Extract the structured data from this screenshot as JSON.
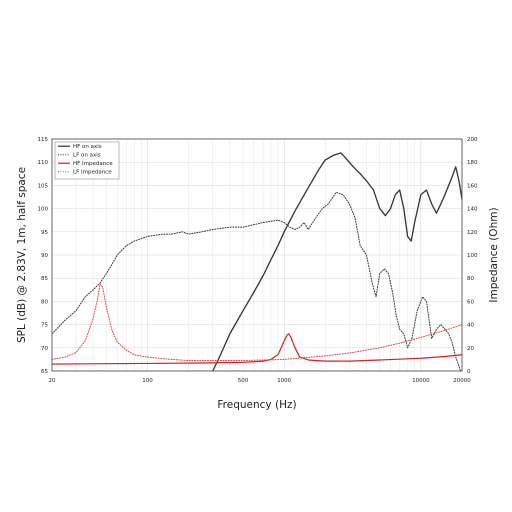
{
  "chart_data": {
    "type": "line",
    "title": "",
    "xlabel": "Frequency (Hz)",
    "ylabel": "SPL (dB) @ 2.83V, 1m, half space",
    "ylabel_right": "Impedance (Ohm)",
    "x_scale": "log",
    "xlim": [
      20,
      20000
    ],
    "ylim": [
      65,
      115
    ],
    "ylim_right": [
      0,
      200
    ],
    "x_ticks": [
      {
        "value": 20,
        "label": "20"
      },
      {
        "value": 100,
        "label": "100"
      },
      {
        "value": 500,
        "label": "500"
      },
      {
        "value": 1000,
        "label": "1000"
      },
      {
        "value": 10000,
        "label": "10000"
      },
      {
        "value": 20000,
        "label": "20000"
      }
    ],
    "y_ticks": [
      65,
      70,
      75,
      80,
      85,
      90,
      95,
      100,
      105,
      110,
      115
    ],
    "y_ticks_right": [
      0,
      20,
      40,
      60,
      80,
      100,
      120,
      140,
      160,
      180,
      200
    ],
    "grid": true,
    "legend_position": "top-left",
    "series": [
      {
        "name": "HF on axis",
        "axis": "left",
        "color": "#333333",
        "style": "solid",
        "points": [
          [
            300,
            65
          ],
          [
            330,
            67.5
          ],
          [
            400,
            73
          ],
          [
            500,
            78
          ],
          [
            600,
            82
          ],
          [
            700,
            85.5
          ],
          [
            800,
            89
          ],
          [
            900,
            92
          ],
          [
            1000,
            95
          ],
          [
            1200,
            99.5
          ],
          [
            1500,
            104.5
          ],
          [
            1800,
            108.5
          ],
          [
            2000,
            110.5
          ],
          [
            2300,
            111.5
          ],
          [
            2600,
            112
          ],
          [
            2800,
            111
          ],
          [
            3200,
            109
          ],
          [
            3600,
            107.5
          ],
          [
            4000,
            106
          ],
          [
            4500,
            104
          ],
          [
            5000,
            100
          ],
          [
            5500,
            98.5
          ],
          [
            6000,
            100
          ],
          [
            6500,
            103
          ],
          [
            7000,
            104
          ],
          [
            7500,
            100
          ],
          [
            8000,
            94
          ],
          [
            8500,
            93
          ],
          [
            9000,
            97
          ],
          [
            10000,
            103
          ],
          [
            11000,
            104
          ],
          [
            12000,
            101
          ],
          [
            13000,
            99
          ],
          [
            14000,
            101
          ],
          [
            15000,
            103
          ],
          [
            16500,
            106
          ],
          [
            18000,
            109
          ],
          [
            19000,
            106
          ],
          [
            20000,
            102
          ]
        ]
      },
      {
        "name": "LF on axis",
        "axis": "left",
        "color": "#333333",
        "style": "dotted",
        "points": [
          [
            20,
            73
          ],
          [
            25,
            76
          ],
          [
            30,
            78
          ],
          [
            35,
            81
          ],
          [
            40,
            82.5
          ],
          [
            45,
            84
          ],
          [
            50,
            86
          ],
          [
            55,
            88
          ],
          [
            60,
            90
          ],
          [
            70,
            92
          ],
          [
            80,
            93
          ],
          [
            100,
            94
          ],
          [
            130,
            94.5
          ],
          [
            150,
            94.5
          ],
          [
            180,
            95
          ],
          [
            200,
            94.5
          ],
          [
            250,
            95
          ],
          [
            300,
            95.5
          ],
          [
            400,
            96
          ],
          [
            500,
            96
          ],
          [
            700,
            97
          ],
          [
            900,
            97.5
          ],
          [
            1000,
            97
          ],
          [
            1100,
            96
          ],
          [
            1200,
            95.5
          ],
          [
            1300,
            96
          ],
          [
            1400,
            97
          ],
          [
            1500,
            95.5
          ],
          [
            1700,
            98
          ],
          [
            1900,
            100
          ],
          [
            2100,
            101
          ],
          [
            2400,
            103.5
          ],
          [
            2700,
            103
          ],
          [
            3000,
            101
          ],
          [
            3300,
            98
          ],
          [
            3600,
            92
          ],
          [
            4000,
            90
          ],
          [
            4400,
            84
          ],
          [
            4700,
            81
          ],
          [
            5000,
            86
          ],
          [
            5400,
            87
          ],
          [
            5800,
            86
          ],
          [
            6200,
            82
          ],
          [
            6600,
            77
          ],
          [
            7000,
            74
          ],
          [
            7500,
            73
          ],
          [
            8000,
            70
          ],
          [
            8600,
            72
          ],
          [
            9400,
            78
          ],
          [
            10300,
            81
          ],
          [
            11000,
            80
          ],
          [
            12000,
            72
          ],
          [
            13000,
            74
          ],
          [
            14000,
            75
          ],
          [
            15000,
            74
          ],
          [
            16000,
            73
          ],
          [
            17000,
            71
          ],
          [
            18000,
            68
          ],
          [
            19000,
            66
          ],
          [
            20000,
            64
          ]
        ]
      },
      {
        "name": "HF Impedance",
        "axis": "right",
        "color": "#cc2222",
        "style": "solid",
        "points": [
          [
            20,
            6
          ],
          [
            100,
            6.5
          ],
          [
            300,
            7
          ],
          [
            500,
            7.5
          ],
          [
            700,
            8.5
          ],
          [
            800,
            10
          ],
          [
            900,
            14
          ],
          [
            950,
            20
          ],
          [
            1000,
            26
          ],
          [
            1050,
            31
          ],
          [
            1080,
            32
          ],
          [
            1120,
            29
          ],
          [
            1200,
            20
          ],
          [
            1300,
            12
          ],
          [
            1500,
            9.5
          ],
          [
            2000,
            8.5
          ],
          [
            3000,
            8.5
          ],
          [
            5000,
            9.5
          ],
          [
            8000,
            10.5
          ],
          [
            10000,
            11
          ],
          [
            15000,
            12.5
          ],
          [
            20000,
            14
          ]
        ]
      },
      {
        "name": "LF Impedance",
        "axis": "right",
        "color": "#dd4444",
        "style": "dotted",
        "points": [
          [
            20,
            10
          ],
          [
            25,
            12
          ],
          [
            30,
            16
          ],
          [
            35,
            26
          ],
          [
            40,
            45
          ],
          [
            43,
            62
          ],
          [
            45,
            75
          ],
          [
            47,
            72
          ],
          [
            50,
            55
          ],
          [
            55,
            35
          ],
          [
            60,
            25
          ],
          [
            70,
            18
          ],
          [
            80,
            14
          ],
          [
            100,
            12
          ],
          [
            150,
            10
          ],
          [
            200,
            9
          ],
          [
            300,
            9
          ],
          [
            500,
            9
          ],
          [
            1000,
            10
          ],
          [
            2000,
            13
          ],
          [
            3000,
            15.5
          ],
          [
            5000,
            20
          ],
          [
            7000,
            24
          ],
          [
            10000,
            29
          ],
          [
            15000,
            35
          ],
          [
            20000,
            40
          ]
        ]
      }
    ]
  }
}
